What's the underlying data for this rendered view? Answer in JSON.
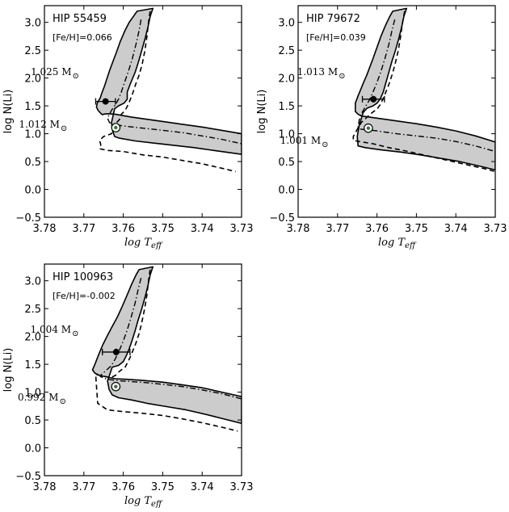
{
  "chart_data": [
    {
      "type": "line",
      "star_label": "HIP 55459",
      "metallicity_label": "[Fe/H]=0.066",
      "xlabel": "log T",
      "xlabel_sub": "eff",
      "ylabel": "log N(Li)",
      "xlim": [
        3.78,
        3.73
      ],
      "ylim": [
        -0.5,
        3.3
      ],
      "x_ticks": [
        "3.78",
        "3.77",
        "3.76",
        "3.75",
        "3.74",
        "3.73"
      ],
      "y_ticks": [
        "−0.5",
        "0.0",
        "0.5",
        "1.0",
        "1.5",
        "2.0",
        "2.5",
        "3.0"
      ],
      "mass_labels": [
        {
          "text": "1.025 M",
          "symbol": "⊙",
          "x": 3.7712,
          "y": 2.05
        },
        {
          "text": "1.012 M",
          "symbol": "⊙",
          "x": 3.7742,
          "y": 1.11
        }
      ],
      "band_upper": {
        "x": [
          3.7565,
          3.7575,
          3.7585,
          3.7596,
          3.7608,
          3.7618,
          3.7626,
          3.7634,
          3.7641,
          3.7648,
          3.7655,
          3.7658,
          3.7662,
          3.7666,
          3.7668,
          3.7664,
          3.7659,
          3.7656,
          3.7653,
          3.765,
          3.764,
          3.762,
          3.758,
          3.754,
          3.75,
          3.745,
          3.74,
          3.735,
          3.73
        ],
        "y": [
          3.2,
          3.1,
          3.0,
          2.85,
          2.65,
          2.45,
          2.3,
          2.15,
          2.0,
          1.85,
          1.72,
          1.65,
          1.6,
          1.55,
          1.48,
          1.42,
          1.38,
          1.36,
          1.34,
          1.35,
          1.36,
          1.35,
          1.3,
          1.26,
          1.22,
          1.17,
          1.12,
          1.06,
          1.0
        ]
      },
      "band_lower": {
        "x": [
          3.7525,
          3.7532,
          3.7538,
          3.7545,
          3.7553,
          3.7561,
          3.757,
          3.7582,
          3.759,
          3.759,
          3.7598,
          3.7612,
          3.7622,
          3.763,
          3.7627,
          3.7622,
          3.761,
          3.757,
          3.752,
          3.747,
          3.742,
          3.737,
          3.73
        ],
        "y": [
          3.25,
          3.1,
          2.9,
          2.7,
          2.5,
          2.3,
          2.1,
          1.9,
          1.75,
          1.62,
          1.55,
          1.5,
          1.45,
          1.2,
          1.05,
          0.95,
          0.92,
          0.87,
          0.83,
          0.79,
          0.75,
          0.7,
          0.63
        ]
      },
      "dashdot": {
        "x": [
          3.7555,
          3.756,
          3.7568,
          3.7577,
          3.7588,
          3.7598,
          3.7605,
          3.7612,
          3.762,
          3.763,
          3.764,
          3.7635,
          3.762,
          3.759,
          3.755,
          3.75,
          3.745,
          3.74,
          3.735,
          3.73
        ],
        "y": [
          3.05,
          2.85,
          2.6,
          2.35,
          2.1,
          1.9,
          1.75,
          1.62,
          1.52,
          1.42,
          1.28,
          1.2,
          1.16,
          1.13,
          1.1,
          1.06,
          1.02,
          0.96,
          0.9,
          0.82
        ]
      },
      "dashed": {
        "x": [
          3.7532,
          3.7536,
          3.754,
          3.7545,
          3.7552,
          3.756,
          3.7568,
          3.7575,
          3.7582,
          3.7588,
          3.7595,
          3.7605,
          3.761,
          3.762,
          3.763,
          3.765,
          3.766,
          3.7657,
          3.766,
          3.764,
          3.76,
          3.755,
          3.75,
          3.745,
          3.74,
          3.735,
          3.7315
        ],
        "y": [
          3.2,
          3.0,
          2.75,
          2.5,
          2.25,
          2.05,
          1.9,
          1.75,
          1.62,
          1.52,
          1.42,
          1.35,
          1.25,
          1.18,
          1.0,
          0.95,
          0.88,
          0.8,
          0.73,
          0.7,
          0.68,
          0.62,
          0.58,
          0.52,
          0.46,
          0.38,
          0.32
        ]
      },
      "observed": {
        "x": 3.7645,
        "y": 1.58,
        "xerr": 0.0025,
        "yerr": 0.05
      },
      "marker": {
        "x": 3.7619,
        "y": 1.11
      }
    },
    {
      "type": "line",
      "star_label": "HIP 79672",
      "metallicity_label": "[Fe/H]=0.039",
      "xlabel": "log T",
      "xlabel_sub": "eff",
      "ylabel": "log N(Li)",
      "xlim": [
        3.78,
        3.73
      ],
      "ylim": [
        -0.5,
        3.3
      ],
      "x_ticks": [
        "3.78",
        "3.77",
        "3.76",
        "3.75",
        "3.74",
        "3.73"
      ],
      "y_ticks": [
        "−0.5",
        "0.0",
        "0.5",
        "1.0",
        "1.5",
        "2.0",
        "2.5",
        "3.0"
      ],
      "mass_labels": [
        {
          "text": "1.013 M",
          "symbol": "⊙",
          "x": 3.768,
          "y": 2.05
        },
        {
          "text": "1.001 M",
          "symbol": "⊙",
          "x": 3.7723,
          "y": 0.82
        }
      ],
      "band_upper": {
        "x": [
          3.756,
          3.7568,
          3.7578,
          3.759,
          3.76,
          3.761,
          3.7618,
          3.7626,
          3.7634,
          3.7641,
          3.7648,
          3.7655,
          3.7655,
          3.7648,
          3.764,
          3.762,
          3.758,
          3.754,
          3.75,
          3.745,
          3.74,
          3.735,
          3.73
        ],
        "y": [
          3.2,
          3.1,
          2.95,
          2.75,
          2.55,
          2.35,
          2.2,
          2.05,
          1.92,
          1.8,
          1.68,
          1.55,
          1.4,
          1.35,
          1.32,
          1.3,
          1.26,
          1.22,
          1.18,
          1.12,
          1.05,
          0.96,
          0.85
        ]
      },
      "band_lower": {
        "x": [
          3.7525,
          3.7532,
          3.7538,
          3.7545,
          3.7553,
          3.7562,
          3.757,
          3.7578,
          3.7584,
          3.7592,
          3.76,
          3.761,
          3.7625,
          3.7635,
          3.7645,
          3.765,
          3.7648,
          3.763,
          3.759,
          3.754,
          3.749,
          3.744,
          3.739,
          3.734,
          3.73
        ],
        "y": [
          3.25,
          3.1,
          2.9,
          2.7,
          2.5,
          2.3,
          2.1,
          1.9,
          1.75,
          1.62,
          1.55,
          1.5,
          1.46,
          1.38,
          1.15,
          0.95,
          0.78,
          0.75,
          0.71,
          0.67,
          0.62,
          0.56,
          0.5,
          0.42,
          0.35
        ]
      },
      "dashdot": {
        "x": [
          3.7555,
          3.7562,
          3.757,
          3.758,
          3.759,
          3.76,
          3.761,
          3.7618,
          3.7628,
          3.7638,
          3.7645,
          3.7648,
          3.764,
          3.762,
          3.759,
          3.755,
          3.75,
          3.745,
          3.74,
          3.735,
          3.73
        ],
        "y": [
          3.05,
          2.85,
          2.6,
          2.35,
          2.12,
          1.92,
          1.75,
          1.62,
          1.5,
          1.38,
          1.25,
          1.12,
          1.08,
          1.07,
          1.04,
          1.0,
          0.96,
          0.92,
          0.86,
          0.78,
          0.68
        ]
      },
      "dashed": {
        "x": [
          3.753,
          3.7535,
          3.754,
          3.7546,
          3.7554,
          3.7562,
          3.757,
          3.7578,
          3.7585,
          3.7592,
          3.76,
          3.7612,
          3.7625,
          3.764,
          3.765,
          3.766,
          3.766,
          3.7645,
          3.761,
          3.757,
          3.752,
          3.747,
          3.742,
          3.737,
          3.732,
          3.73
        ],
        "y": [
          3.2,
          3.0,
          2.75,
          2.5,
          2.25,
          2.05,
          1.88,
          1.74,
          1.62,
          1.52,
          1.44,
          1.38,
          1.3,
          1.2,
          1.08,
          0.95,
          0.88,
          0.86,
          0.82,
          0.75,
          0.68,
          0.6,
          0.52,
          0.44,
          0.36,
          0.32
        ]
      },
      "observed": {
        "x": 3.7609,
        "y": 1.62,
        "xerr": 0.0028,
        "yerr": 0.06
      },
      "marker": {
        "x": 3.7622,
        "y": 1.1
      }
    },
    {
      "type": "line",
      "star_label": "HIP 100963",
      "metallicity_label": "[Fe/H]=-0.002",
      "xlabel": "log T",
      "xlabel_sub": "eff",
      "ylabel": "log N(Li)",
      "xlim": [
        3.78,
        3.73
      ],
      "ylim": [
        -0.5,
        3.3
      ],
      "x_ticks": [
        "3.78",
        "3.77",
        "3.76",
        "3.75",
        "3.74",
        "3.73"
      ],
      "y_ticks": [
        "−0.5",
        "0.0",
        "0.5",
        "1.0",
        "1.5",
        "2.0",
        "2.5",
        "3.0"
      ],
      "mass_labels": [
        {
          "text": "1.004 M",
          "symbol": "⊙",
          "x": 3.7713,
          "y": 2.07
        },
        {
          "text": "0.992 M",
          "symbol": "⊙",
          "x": 3.7745,
          "y": 0.85
        }
      ],
      "band_upper": {
        "x": [
          3.756,
          3.7568,
          3.7578,
          3.759,
          3.7602,
          3.7615,
          3.7628,
          3.764,
          3.7652,
          3.7662,
          3.7672,
          3.7678,
          3.7672,
          3.766,
          3.764,
          3.762,
          3.759,
          3.755,
          3.75,
          3.745,
          3.74,
          3.735,
          3.73
        ],
        "y": [
          3.2,
          3.1,
          2.95,
          2.75,
          2.55,
          2.35,
          2.18,
          2.02,
          1.85,
          1.68,
          1.5,
          1.4,
          1.34,
          1.3,
          1.27,
          1.24,
          1.23,
          1.21,
          1.18,
          1.13,
          1.08,
          1.0,
          0.92
        ]
      },
      "band_lower": {
        "x": [
          3.7525,
          3.7532,
          3.7538,
          3.7545,
          3.7553,
          3.7562,
          3.757,
          3.7578,
          3.7585,
          3.7592,
          3.76,
          3.7612,
          3.7628,
          3.764,
          3.7636,
          3.7628,
          3.7612,
          3.758,
          3.754,
          3.749,
          3.744,
          3.739,
          3.734,
          3.73
        ],
        "y": [
          3.25,
          3.1,
          2.9,
          2.7,
          2.5,
          2.3,
          2.1,
          1.92,
          1.78,
          1.66,
          1.55,
          1.48,
          1.45,
          1.2,
          1.05,
          0.95,
          0.9,
          0.86,
          0.8,
          0.74,
          0.68,
          0.6,
          0.51,
          0.44
        ]
      },
      "dashdot": {
        "x": [
          3.7555,
          3.7562,
          3.757,
          3.758,
          3.759,
          3.76,
          3.761,
          3.762,
          3.763,
          3.7645,
          3.7655,
          3.7658,
          3.7645,
          3.762,
          3.758,
          3.754,
          3.75,
          3.745,
          3.74,
          3.735,
          3.73
        ],
        "y": [
          3.05,
          2.85,
          2.6,
          2.35,
          2.12,
          1.92,
          1.75,
          1.6,
          1.48,
          1.38,
          1.32,
          1.28,
          1.24,
          1.21,
          1.19,
          1.17,
          1.14,
          1.1,
          1.04,
          0.97,
          0.88
        ]
      },
      "dashed": {
        "x": [
          3.7532,
          3.7536,
          3.754,
          3.7546,
          3.7553,
          3.756,
          3.7568,
          3.7576,
          3.7583,
          3.759,
          3.7596,
          3.7605,
          3.7612,
          3.762,
          3.7632,
          3.7645,
          3.766,
          3.767,
          3.7665,
          3.764,
          3.76,
          3.755,
          3.75,
          3.745,
          3.74,
          3.735,
          3.731
        ],
        "y": [
          3.2,
          3.0,
          2.75,
          2.5,
          2.25,
          2.05,
          1.88,
          1.74,
          1.62,
          1.52,
          1.44,
          1.4,
          1.36,
          1.3,
          1.26,
          1.28,
          1.3,
          1.32,
          0.8,
          0.68,
          0.65,
          0.62,
          0.58,
          0.52,
          0.45,
          0.37,
          0.3
        ]
      },
      "observed": {
        "x": 3.7618,
        "y": 1.72,
        "xerr": 0.0035,
        "yerr": 0.06
      },
      "marker": {
        "x": 3.7619,
        "y": 1.1
      }
    }
  ]
}
